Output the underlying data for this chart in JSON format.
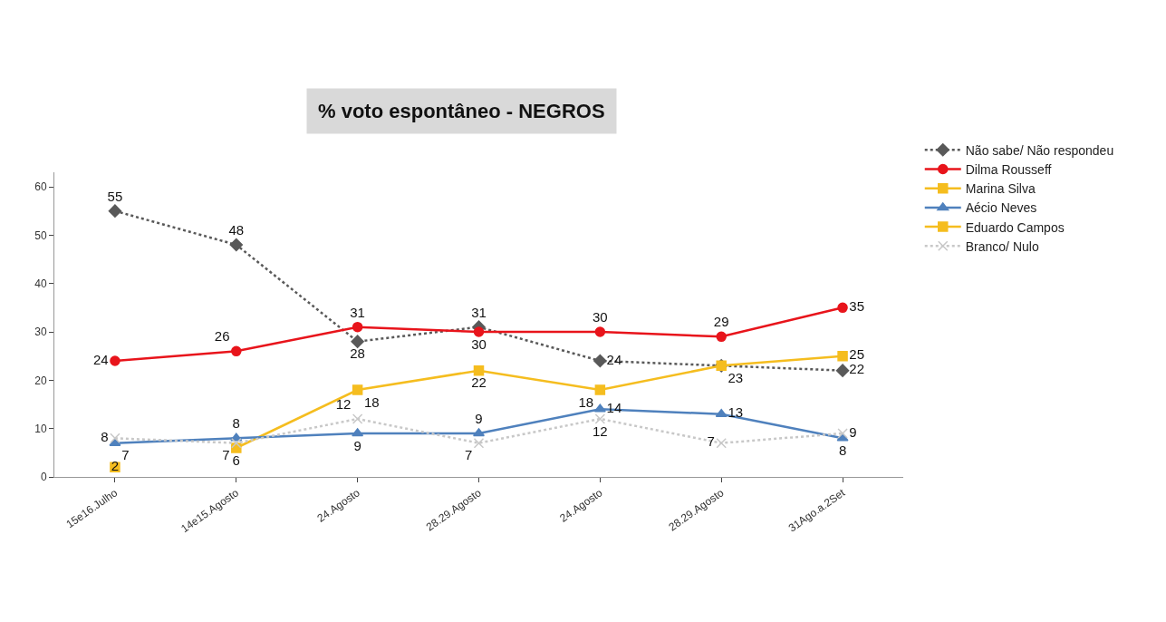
{
  "chart_data": {
    "type": "line",
    "title": "% voto espontâneo - NEGROS",
    "categories": [
      "15e16.Julho",
      "14e15.Agosto",
      "24.Agosto",
      "28.29.Agosto",
      "24.Agosto",
      "28.29.Agosto",
      "31Ago.a.2Set"
    ],
    "ylim": [
      0,
      63
    ],
    "yticks": [
      0,
      10,
      20,
      30,
      40,
      50,
      60
    ],
    "legend": "right",
    "series": [
      {
        "name": "Não sabe/ Não respondeu",
        "color": "#595959",
        "marker": "diamond",
        "line_style": "dotted",
        "values": [
          55,
          48,
          28,
          31,
          24,
          23,
          22
        ],
        "value_labels": [
          "55",
          "48",
          "28",
          "31",
          "24",
          null,
          "22"
        ]
      },
      {
        "name": "Dilma Rousseff",
        "color": "#e8141b",
        "marker": "circle",
        "line_style": "solid",
        "values": [
          24,
          26,
          31,
          30,
          30,
          29,
          35
        ],
        "value_labels": [
          "24",
          "26",
          "31",
          "30",
          "30",
          "29",
          "35"
        ]
      },
      {
        "name": "Marina Silva",
        "color": "#f5bd1f",
        "marker": "square",
        "line_style": "solid",
        "values": [
          null,
          6,
          18,
          22,
          18,
          23,
          25
        ],
        "value_labels": [
          null,
          "6",
          "18",
          "22",
          "18",
          "23",
          "25"
        ]
      },
      {
        "name": "Aécio Neves",
        "color": "#4f81bd",
        "marker": "triangle",
        "line_style": "solid",
        "values": [
          7,
          8,
          9,
          9,
          14,
          13,
          8
        ],
        "value_labels": [
          "7",
          "8",
          "9",
          "9",
          "14",
          "13",
          "8"
        ]
      },
      {
        "name": "Eduardo Campos",
        "color": "#f5bd1f",
        "marker": "square",
        "line_style": "solid",
        "values": [
          2,
          null,
          null,
          null,
          null,
          null,
          null
        ],
        "value_labels": [
          "2",
          null,
          null,
          null,
          null,
          null,
          null
        ]
      },
      {
        "name": "Branco/ Nulo",
        "color": "#c8c8c8",
        "marker": "cross",
        "line_style": "dotted",
        "values": [
          8,
          7,
          12,
          7,
          12,
          7,
          9
        ],
        "value_labels": [
          "8",
          "7",
          "12",
          "7",
          "12",
          "7",
          "9"
        ]
      }
    ]
  }
}
